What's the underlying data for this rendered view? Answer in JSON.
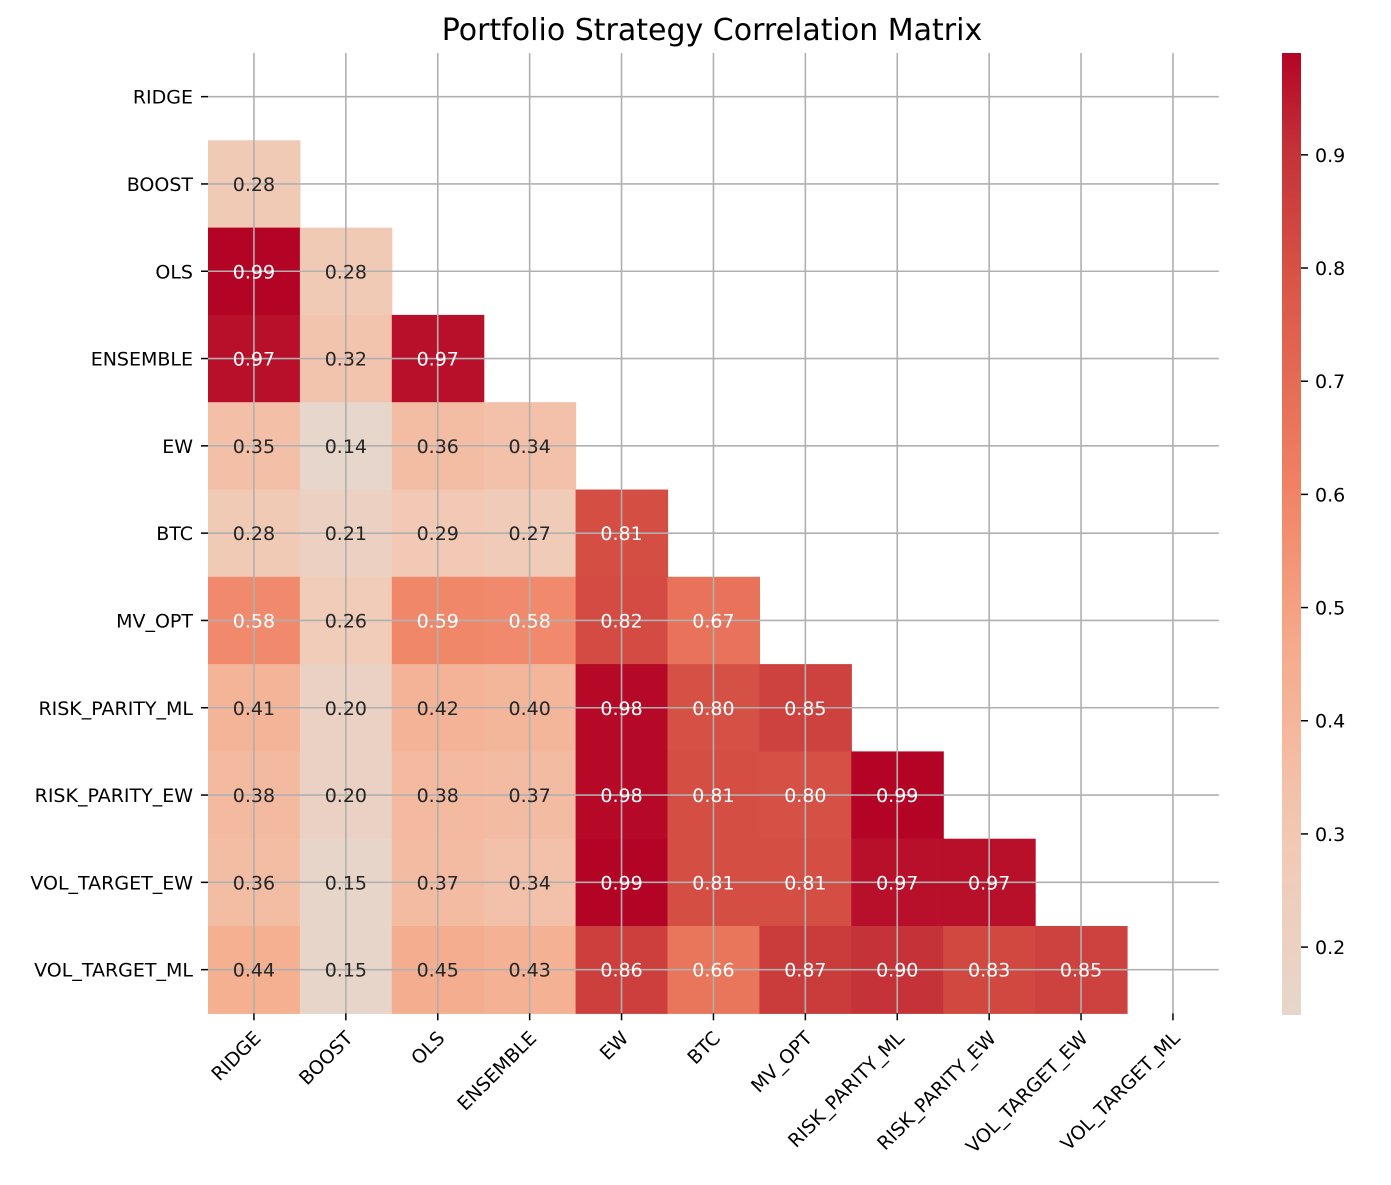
{
  "chart_data": {
    "type": "heatmap",
    "title": "Portfolio Strategy Correlation Matrix",
    "xlabel": "",
    "ylabel": "",
    "labels": [
      "RIDGE",
      "BOOST",
      "OLS",
      "ENSEMBLE",
      "EW",
      "BTC",
      "MV_OPT",
      "RISK_PARITY_ML",
      "RISK_PARITY_EW",
      "VOL_TARGET_EW",
      "VOL_TARGET_ML"
    ],
    "mask": "upper triangle including diagonal",
    "grid": true,
    "matrix": [
      [],
      [
        0.28
      ],
      [
        0.99,
        0.28
      ],
      [
        0.97,
        0.32,
        0.97
      ],
      [
        0.35,
        0.14,
        0.36,
        0.34
      ],
      [
        0.28,
        0.21,
        0.29,
        0.27,
        0.81
      ],
      [
        0.58,
        0.26,
        0.59,
        0.58,
        0.82,
        0.67
      ],
      [
        0.41,
        0.2,
        0.42,
        0.4,
        0.98,
        0.8,
        0.85
      ],
      [
        0.38,
        0.2,
        0.38,
        0.37,
        0.98,
        0.81,
        0.8,
        0.99
      ],
      [
        0.36,
        0.15,
        0.37,
        0.34,
        0.99,
        0.81,
        0.81,
        0.97,
        0.97
      ],
      [
        0.44,
        0.15,
        0.45,
        0.43,
        0.86,
        0.66,
        0.87,
        0.9,
        0.83,
        0.85
      ]
    ],
    "colormap": "coolwarm",
    "colorbar": {
      "range": [
        0.14,
        0.99
      ],
      "ticks": [
        "0.2",
        "0.3",
        "0.4",
        "0.5",
        "0.6",
        "0.7",
        "0.8",
        "0.9"
      ],
      "colors": {
        "low": "#e7d6cc",
        "mid": "#f4987a",
        "high": "#b40426"
      }
    }
  }
}
